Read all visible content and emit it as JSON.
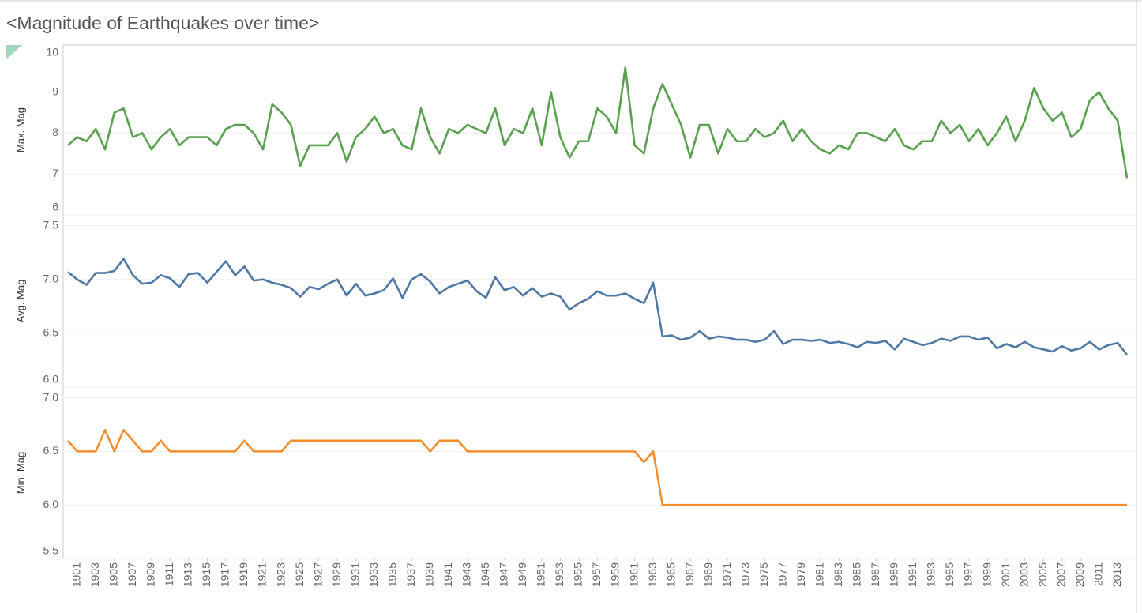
{
  "title": "<Magnitude of Earthquakes over time>",
  "chart_data": [
    {
      "type": "line",
      "y_label": "Max. Mag",
      "color": "#59a14f",
      "x": [
        1900,
        1901,
        1902,
        1903,
        1904,
        1905,
        1906,
        1907,
        1908,
        1909,
        1910,
        1911,
        1912,
        1913,
        1914,
        1915,
        1916,
        1917,
        1918,
        1919,
        1920,
        1921,
        1922,
        1923,
        1924,
        1925,
        1926,
        1927,
        1928,
        1929,
        1930,
        1931,
        1932,
        1933,
        1934,
        1935,
        1936,
        1937,
        1938,
        1939,
        1940,
        1941,
        1942,
        1943,
        1944,
        1945,
        1946,
        1947,
        1948,
        1949,
        1950,
        1951,
        1952,
        1953,
        1954,
        1955,
        1956,
        1957,
        1958,
        1959,
        1960,
        1961,
        1962,
        1963,
        1964,
        1965,
        1966,
        1967,
        1968,
        1969,
        1970,
        1971,
        1972,
        1973,
        1974,
        1975,
        1976,
        1977,
        1978,
        1979,
        1980,
        1981,
        1982,
        1983,
        1984,
        1985,
        1986,
        1987,
        1988,
        1989,
        1990,
        1991,
        1992,
        1993,
        1994,
        1995,
        1996,
        1997,
        1998,
        1999,
        2000,
        2001,
        2002,
        2003,
        2004,
        2005,
        2006,
        2007,
        2008,
        2009,
        2010,
        2011,
        2012,
        2013,
        2014
      ],
      "values": [
        7.7,
        7.9,
        7.8,
        8.1,
        7.6,
        8.5,
        8.6,
        7.9,
        8.0,
        7.6,
        7.9,
        8.1,
        7.7,
        7.9,
        7.9,
        7.9,
        7.7,
        8.1,
        8.2,
        8.2,
        8.0,
        7.6,
        8.7,
        8.5,
        8.2,
        7.2,
        7.7,
        7.7,
        7.7,
        8.0,
        7.3,
        7.9,
        8.1,
        8.4,
        8.0,
        8.1,
        7.7,
        7.6,
        8.6,
        7.9,
        7.5,
        8.1,
        8.0,
        8.2,
        8.1,
        8.0,
        8.6,
        7.7,
        8.1,
        8.0,
        8.6,
        7.7,
        9.0,
        7.9,
        7.4,
        7.8,
        7.8,
        8.6,
        8.4,
        8.0,
        9.6,
        7.7,
        7.5,
        8.6,
        9.2,
        8.7,
        8.2,
        7.4,
        8.2,
        8.2,
        7.5,
        8.1,
        7.8,
        7.8,
        8.1,
        7.9,
        8.0,
        8.3,
        7.8,
        8.1,
        7.8,
        7.6,
        7.5,
        7.7,
        7.6,
        8.0,
        8.0,
        7.9,
        7.8,
        8.1,
        7.7,
        7.6,
        7.8,
        7.8,
        8.3,
        8.0,
        8.2,
        7.8,
        8.1,
        7.7,
        8.0,
        8.4,
        7.8,
        8.3,
        9.1,
        8.6,
        8.3,
        8.5,
        7.9,
        8.1,
        8.8,
        9.0,
        8.6,
        8.3,
        6.9
      ],
      "xlim": [
        1900,
        2014
      ],
      "ylim": [
        6.0,
        10.15
      ],
      "yticks": [
        6,
        7,
        8,
        9,
        10
      ],
      "grid": true
    },
    {
      "type": "line",
      "y_label": "Avg. Mag",
      "color": "#4e79a7",
      "x": [
        1900,
        1901,
        1902,
        1903,
        1904,
        1905,
        1906,
        1907,
        1908,
        1909,
        1910,
        1911,
        1912,
        1913,
        1914,
        1915,
        1916,
        1917,
        1918,
        1919,
        1920,
        1921,
        1922,
        1923,
        1924,
        1925,
        1926,
        1927,
        1928,
        1929,
        1930,
        1931,
        1932,
        1933,
        1934,
        1935,
        1936,
        1937,
        1938,
        1939,
        1940,
        1941,
        1942,
        1943,
        1944,
        1945,
        1946,
        1947,
        1948,
        1949,
        1950,
        1951,
        1952,
        1953,
        1954,
        1955,
        1956,
        1957,
        1958,
        1959,
        1960,
        1961,
        1962,
        1963,
        1964,
        1965,
        1966,
        1967,
        1968,
        1969,
        1970,
        1971,
        1972,
        1973,
        1974,
        1975,
        1976,
        1977,
        1978,
        1979,
        1980,
        1981,
        1982,
        1983,
        1984,
        1985,
        1986,
        1987,
        1988,
        1989,
        1990,
        1991,
        1992,
        1993,
        1994,
        1995,
        1996,
        1997,
        1998,
        1999,
        2000,
        2001,
        2002,
        2003,
        2004,
        2005,
        2006,
        2007,
        2008,
        2009,
        2010,
        2011,
        2012,
        2013,
        2014
      ],
      "values": [
        7.07,
        7.0,
        6.95,
        7.06,
        7.06,
        7.08,
        7.19,
        7.04,
        6.96,
        6.97,
        7.04,
        7.01,
        6.93,
        7.05,
        7.06,
        6.97,
        7.07,
        7.17,
        7.04,
        7.12,
        6.99,
        7.0,
        6.97,
        6.95,
        6.92,
        6.84,
        6.93,
        6.91,
        6.96,
        7.0,
        6.85,
        6.96,
        6.85,
        6.87,
        6.9,
        7.01,
        6.83,
        7.0,
        7.05,
        6.98,
        6.87,
        6.93,
        6.96,
        6.99,
        6.89,
        6.83,
        7.02,
        6.9,
        6.93,
        6.85,
        6.92,
        6.84,
        6.87,
        6.84,
        6.72,
        6.78,
        6.82,
        6.89,
        6.85,
        6.85,
        6.87,
        6.82,
        6.78,
        6.97,
        6.47,
        6.48,
        6.44,
        6.46,
        6.52,
        6.45,
        6.47,
        6.46,
        6.44,
        6.44,
        6.42,
        6.44,
        6.52,
        6.4,
        6.44,
        6.44,
        6.43,
        6.44,
        6.41,
        6.42,
        6.4,
        6.37,
        6.42,
        6.41,
        6.43,
        6.35,
        6.45,
        6.42,
        6.39,
        6.41,
        6.45,
        6.43,
        6.47,
        6.47,
        6.44,
        6.46,
        6.36,
        6.4,
        6.37,
        6.42,
        6.37,
        6.35,
        6.33,
        6.38,
        6.34,
        6.36,
        6.42,
        6.35,
        6.39,
        6.41,
        6.3
      ],
      "xlim": [
        1900,
        2014
      ],
      "ylim": [
        6.0,
        7.6
      ],
      "yticks": [
        {
          "value": 6,
          "label": "6.0"
        },
        6.5,
        {
          "value": 7,
          "label": "7.0"
        },
        7.5
      ],
      "grid": true
    },
    {
      "type": "line",
      "y_label": "Min. Mag",
      "color": "#f28e2b",
      "x": [
        1900,
        1901,
        1902,
        1903,
        1904,
        1905,
        1906,
        1907,
        1908,
        1909,
        1910,
        1911,
        1912,
        1913,
        1914,
        1915,
        1916,
        1917,
        1918,
        1919,
        1920,
        1921,
        1922,
        1923,
        1924,
        1925,
        1926,
        1927,
        1928,
        1929,
        1930,
        1931,
        1932,
        1933,
        1934,
        1935,
        1936,
        1937,
        1938,
        1939,
        1940,
        1941,
        1942,
        1943,
        1944,
        1945,
        1946,
        1947,
        1948,
        1949,
        1950,
        1951,
        1952,
        1953,
        1954,
        1955,
        1956,
        1957,
        1958,
        1959,
        1960,
        1961,
        1962,
        1963,
        1964,
        1965,
        1966,
        1967,
        1968,
        1969,
        1970,
        1971,
        1972,
        1973,
        1974,
        1975,
        1976,
        1977,
        1978,
        1979,
        1980,
        1981,
        1982,
        1983,
        1984,
        1985,
        1986,
        1987,
        1988,
        1989,
        1990,
        1991,
        1992,
        1993,
        1994,
        1995,
        1996,
        1997,
        1998,
        1999,
        2000,
        2001,
        2002,
        2003,
        2004,
        2005,
        2006,
        2007,
        2008,
        2009,
        2010,
        2011,
        2012,
        2013,
        2014
      ],
      "values": [
        6.6,
        6.5,
        6.5,
        6.5,
        6.7,
        6.5,
        6.7,
        6.6,
        6.5,
        6.5,
        6.6,
        6.5,
        6.5,
        6.5,
        6.5,
        6.5,
        6.5,
        6.5,
        6.5,
        6.6,
        6.5,
        6.5,
        6.5,
        6.5,
        6.6,
        6.6,
        6.6,
        6.6,
        6.6,
        6.6,
        6.6,
        6.6,
        6.6,
        6.6,
        6.6,
        6.6,
        6.6,
        6.6,
        6.6,
        6.5,
        6.6,
        6.6,
        6.6,
        6.5,
        6.5,
        6.5,
        6.5,
        6.5,
        6.5,
        6.5,
        6.5,
        6.5,
        6.5,
        6.5,
        6.5,
        6.5,
        6.5,
        6.5,
        6.5,
        6.5,
        6.5,
        6.5,
        6.4,
        6.5,
        6.0,
        6.0,
        6.0,
        6.0,
        6.0,
        6.0,
        6.0,
        6.0,
        6.0,
        6.0,
        6.0,
        6.0,
        6.0,
        6.0,
        6.0,
        6.0,
        6.0,
        6.0,
        6.0,
        6.0,
        6.0,
        6.0,
        6.0,
        6.0,
        6.0,
        6.0,
        6.0,
        6.0,
        6.0,
        6.0,
        6.0,
        6.0,
        6.0,
        6.0,
        6.0,
        6.0,
        6.0,
        6.0,
        6.0,
        6.0,
        6.0,
        6.0,
        6.0,
        6.0,
        6.0,
        6.0,
        6.0,
        6.0,
        6.0,
        6.0,
        6.0
      ],
      "xlim": [
        1900,
        2014
      ],
      "ylim": [
        5.5,
        7.1
      ],
      "yticks": [
        5.5,
        {
          "value": 6,
          "label": "6.0"
        },
        6.5,
        {
          "value": 7,
          "label": "7.0"
        }
      ],
      "grid": true,
      "xticks": [
        1901,
        1903,
        1905,
        1907,
        1909,
        1911,
        1913,
        1915,
        1917,
        1919,
        1921,
        1923,
        1925,
        1927,
        1929,
        1931,
        1933,
        1935,
        1937,
        1939,
        1941,
        1943,
        1945,
        1947,
        1949,
        1951,
        1953,
        1955,
        1957,
        1959,
        1961,
        1963,
        1965,
        1967,
        1969,
        1971,
        1973,
        1975,
        1977,
        1979,
        1981,
        1983,
        1985,
        1987,
        1989,
        1991,
        1993,
        1995,
        1997,
        1999,
        2001,
        2003,
        2005,
        2007,
        2009,
        2011,
        2013
      ]
    }
  ]
}
